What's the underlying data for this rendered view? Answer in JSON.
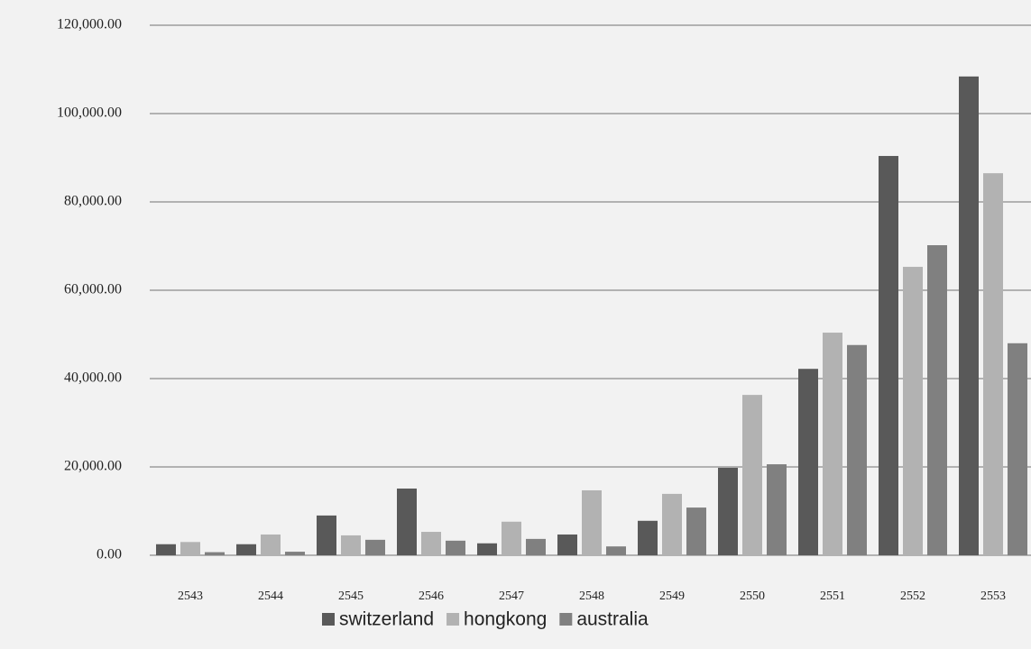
{
  "chart_data": {
    "type": "bar",
    "categories": [
      "2543",
      "2544",
      "2545",
      "2546",
      "2547",
      "2548",
      "2549",
      "2550",
      "2551",
      "2552",
      "2553"
    ],
    "series": [
      {
        "name": "switzerland",
        "color": "#595959",
        "values": [
          2500,
          2500,
          9000,
          15100,
          2700,
          4700,
          7800,
          19800,
          42200,
          90400,
          108400
        ]
      },
      {
        "name": "hongkong",
        "color": "#b2b2b2",
        "values": [
          3000,
          4700,
          4500,
          5300,
          7600,
          14700,
          13900,
          36300,
          50400,
          65300,
          86500
        ]
      },
      {
        "name": "australia",
        "color": "#808080",
        "values": [
          700,
          800,
          3500,
          3300,
          3700,
          2000,
          10800,
          20600,
          47600,
          70200,
          48000
        ]
      }
    ],
    "ylim": [
      0,
      120000
    ],
    "yticks": [
      {
        "value": 0,
        "label": "0.00"
      },
      {
        "value": 20000,
        "label": "20,000.00"
      },
      {
        "value": 40000,
        "label": "40,000.00"
      },
      {
        "value": 60000,
        "label": "60,000.00"
      },
      {
        "value": 80000,
        "label": "80,000.00"
      },
      {
        "value": 100000,
        "label": "100,000.00"
      },
      {
        "value": 120000,
        "label": "120,000.00"
      }
    ],
    "grid": true,
    "legend": "bottom"
  }
}
